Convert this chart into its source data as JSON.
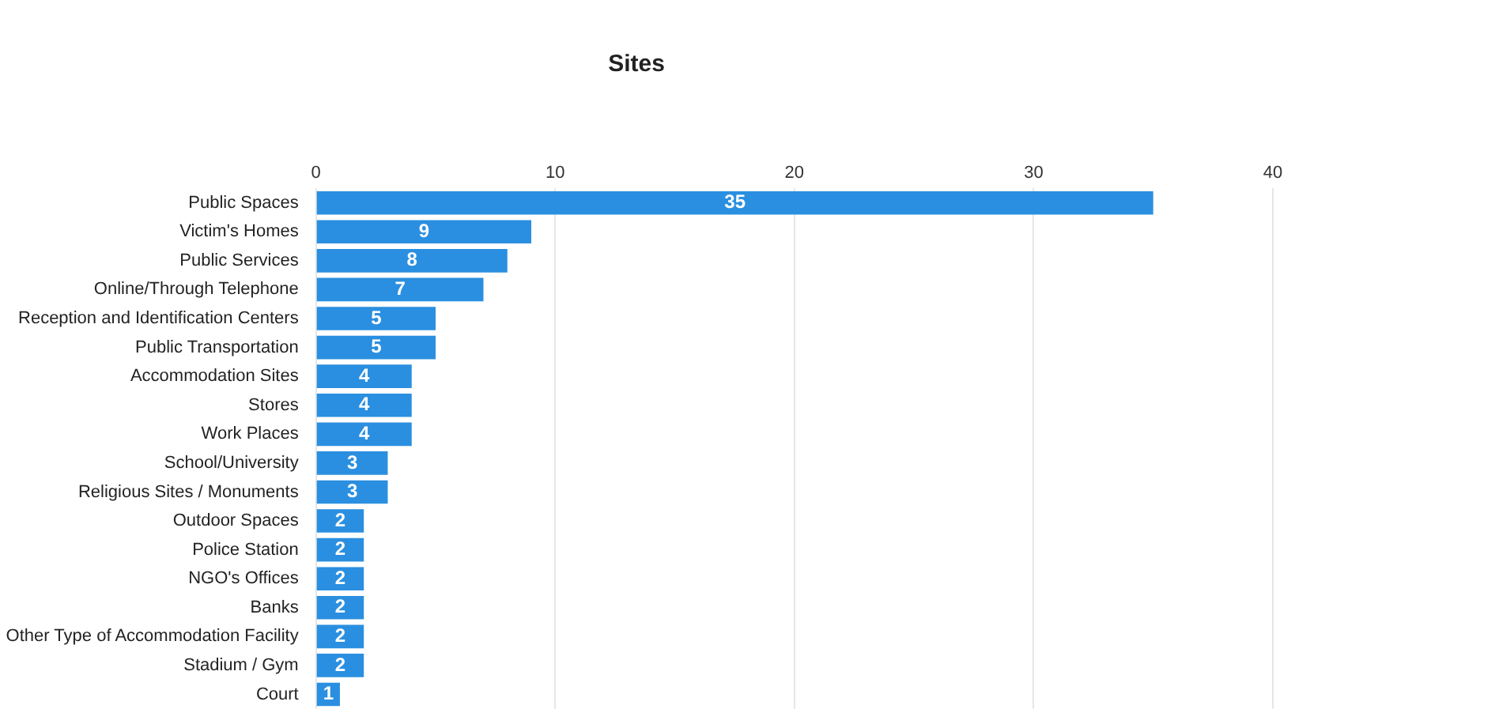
{
  "chart_data": {
    "type": "bar",
    "orientation": "horizontal",
    "title": "Sites",
    "categories": [
      "Public Spaces",
      "Victim's Homes",
      "Public Services",
      "Online/Through Telephone",
      "Reception and Identification Centers",
      "Public Transportation",
      "Accommodation Sites",
      "Stores",
      "Work Places",
      "School/University",
      "Religious Sites / Monuments",
      "Outdoor Spaces",
      "Police Station",
      "NGO's Offices",
      "Banks",
      "Other Type of Accommodation Facility",
      "Stadium / Gym",
      "Court"
    ],
    "values": [
      35,
      9,
      8,
      7,
      5,
      5,
      4,
      4,
      4,
      3,
      3,
      2,
      2,
      2,
      2,
      2,
      2,
      1
    ],
    "color": "#2a8fe0",
    "xlim": [
      0,
      40
    ],
    "xticks": [
      0,
      10,
      20,
      30,
      40
    ],
    "grid": "x",
    "data_labels": true,
    "legend": false
  }
}
